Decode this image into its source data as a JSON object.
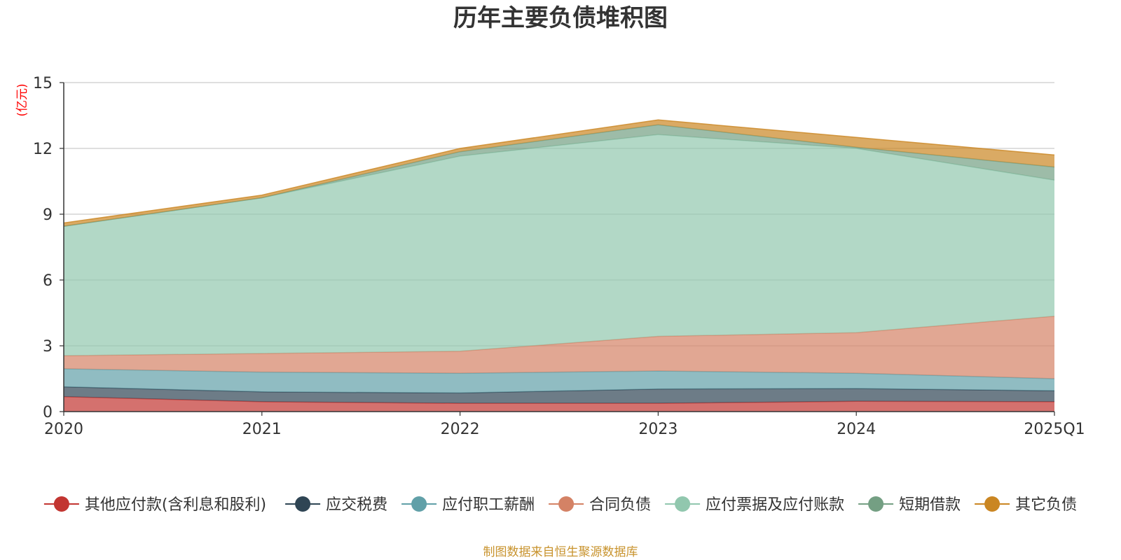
{
  "chart_data": {
    "type": "area",
    "stacked": true,
    "title": "历年主要负债堆积图",
    "y_unit_label": "(亿元)",
    "categories": [
      "2020",
      "2021",
      "2022",
      "2023",
      "2024",
      "2025Q1"
    ],
    "ylim": [
      0,
      15
    ],
    "yticks": [
      0,
      3,
      6,
      9,
      12,
      15
    ],
    "grid": true,
    "legend_position": "bottom",
    "series": [
      {
        "name": "其他应付款(含利息和股利)",
        "color": "#c23531",
        "values": [
          0.68,
          0.45,
          0.38,
          0.38,
          0.47,
          0.45
        ]
      },
      {
        "name": "应交税费",
        "color": "#2f4554",
        "values": [
          0.45,
          0.45,
          0.47,
          0.65,
          0.58,
          0.5
        ]
      },
      {
        "name": "应付职工薪酬",
        "color": "#61a0a8",
        "values": [
          0.82,
          0.9,
          0.9,
          0.82,
          0.7,
          0.55
        ]
      },
      {
        "name": "合同负债",
        "color": "#d48265",
        "values": [
          0.6,
          0.85,
          1.0,
          1.58,
          1.85,
          2.85
        ]
      },
      {
        "name": "应付票据及应付账款",
        "color": "#91c7ae",
        "values": [
          5.9,
          7.1,
          8.9,
          9.2,
          8.4,
          6.2
        ]
      },
      {
        "name": "短期借款",
        "color": "#749f83",
        "values": [
          0.0,
          0.0,
          0.2,
          0.45,
          0.05,
          0.6
        ]
      },
      {
        "name": "其它负债",
        "color": "#ca8622",
        "values": [
          0.15,
          0.12,
          0.15,
          0.22,
          0.45,
          0.55
        ]
      }
    ]
  },
  "source_note": "制图数据来自恒生聚源数据库"
}
